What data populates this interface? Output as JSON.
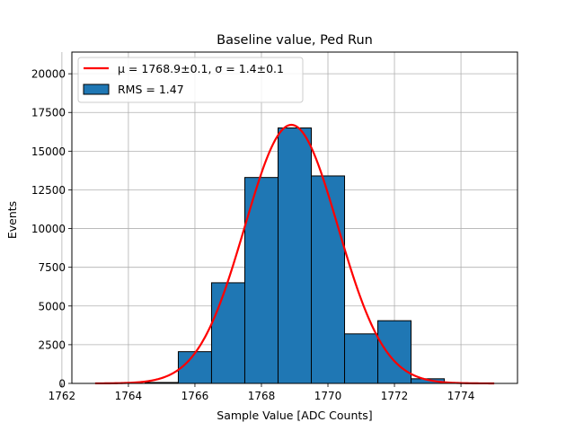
{
  "chart_data": {
    "type": "bar",
    "title": "Baseline value, Ped Run",
    "xlabel": "Sample Value [ADC Counts]",
    "ylabel": "Events",
    "xlim": [
      1762.3,
      1775.7
    ],
    "ylim": [
      0,
      21400
    ],
    "grid": true,
    "legend_position": "top-left",
    "xticks": [
      1762,
      1764,
      1766,
      1768,
      1770,
      1772,
      1774
    ],
    "yticks": [
      0,
      2500,
      5000,
      7500,
      10000,
      12500,
      15000,
      17500,
      20000
    ],
    "xtick_labels": [
      "1762",
      "1764",
      "1766",
      "1768",
      "1770",
      "1772",
      "1774"
    ],
    "ytick_labels": [
      "0",
      "2500",
      "5000",
      "7500",
      "10000",
      "12500",
      "15000",
      "17500",
      "20000"
    ],
    "histogram": {
      "name": "RMS = 1.47",
      "color": "#1f77b4",
      "edge_color": "#000000",
      "bins": [
        {
          "x0": 1764.5,
          "x1": 1765.5,
          "value": 60
        },
        {
          "x0": 1765.5,
          "x1": 1766.5,
          "value": 2050
        },
        {
          "x0": 1766.5,
          "x1": 1767.5,
          "value": 6500
        },
        {
          "x0": 1767.5,
          "x1": 1768.5,
          "value": 13300
        },
        {
          "x0": 1768.5,
          "x1": 1769.5,
          "value": 16500
        },
        {
          "x0": 1769.5,
          "x1": 1770.5,
          "value": 13400
        },
        {
          "x0": 1770.5,
          "x1": 1771.5,
          "value": 3200
        },
        {
          "x0": 1771.5,
          "x1": 1772.5,
          "value": 4050
        },
        {
          "x0": 1772.5,
          "x1": 1773.5,
          "value": 300
        }
      ]
    },
    "fit": {
      "name": "μ = 1768.9±0.1, σ = 1.4±0.1",
      "color": "#ff0000",
      "mu": 1768.9,
      "sigma": 1.4,
      "amplitude": 16700,
      "x_range": [
        1763,
        1775
      ]
    }
  }
}
